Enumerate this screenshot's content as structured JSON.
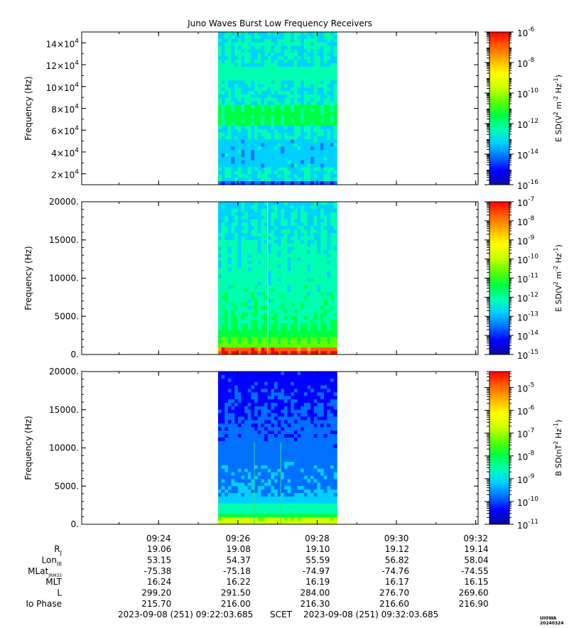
{
  "title": "Juno Waves Burst Low Frequency Receivers",
  "colors": {
    "colormap": [
      "#0a0aa0",
      "#0000ff",
      "#0070ff",
      "#00d0ff",
      "#00ffb0",
      "#00ff40",
      "#60ff00",
      "#d0ff00",
      "#ffff00",
      "#ffb000",
      "#ff6000",
      "#ff0000"
    ]
  },
  "chart_data": [
    {
      "type": "heatmap",
      "ylabel": "Frequency (Hz)",
      "ylim": [
        10000,
        150000
      ],
      "yticks": [
        {
          "value": 20000,
          "mantissa": "2×10",
          "exp": "4"
        },
        {
          "value": 40000,
          "mantissa": "4×10",
          "exp": "4"
        },
        {
          "value": 60000,
          "mantissa": "6×10",
          "exp": "4"
        },
        {
          "value": 80000,
          "mantissa": "8×10",
          "exp": "4"
        },
        {
          "value": 100000,
          "mantissa": "10×10",
          "exp": "4"
        },
        {
          "value": 120000,
          "mantissa": "12×10",
          "exp": "4"
        },
        {
          "value": 140000,
          "mantissa": "14×10",
          "exp": "4"
        }
      ],
      "data_time_range": [
        "09:25:30",
        "09:28:30"
      ],
      "colorbar": {
        "label_main": "E SD(V",
        "label_sup1": "2",
        "label_mid": " m",
        "label_sup2": "-2",
        "label_mid2": " Hz",
        "label_sup3": "-1",
        "label_end": ")",
        "log_range": [
          -16,
          -6
        ],
        "ticks": [
          {
            "value": -6,
            "text": "10",
            "exp": "-6"
          },
          {
            "value": -8,
            "text": "10",
            "exp": "-8"
          },
          {
            "value": -10,
            "text": "10",
            "exp": "-10"
          },
          {
            "value": -12,
            "text": "10",
            "exp": "-12"
          },
          {
            "value": -14,
            "text": "10",
            "exp": "-14"
          },
          {
            "value": -16,
            "text": "10",
            "exp": "-16"
          }
        ]
      }
    },
    {
      "type": "heatmap",
      "ylabel": "Frequency (Hz)",
      "ylim": [
        0,
        20000
      ],
      "yticks": [
        {
          "value": 0,
          "text": "0."
        },
        {
          "value": 5000,
          "text": "5000."
        },
        {
          "value": 10000,
          "text": "10000."
        },
        {
          "value": 15000,
          "text": "15000."
        },
        {
          "value": 20000,
          "text": "20000."
        }
      ],
      "data_time_range": [
        "09:25:30",
        "09:28:30"
      ],
      "colorbar": {
        "label_main": "E SD(V",
        "label_sup1": "2",
        "label_mid": " m",
        "label_sup2": "-2",
        "label_mid2": " Hz",
        "label_sup3": "-1",
        "label_end": ")",
        "log_range": [
          -15,
          -7
        ],
        "ticks": [
          {
            "value": -7,
            "text": "10",
            "exp": "-7"
          },
          {
            "value": -8,
            "text": "10",
            "exp": "-8"
          },
          {
            "value": -9,
            "text": "10",
            "exp": "-9"
          },
          {
            "value": -10,
            "text": "10",
            "exp": "-10"
          },
          {
            "value": -11,
            "text": "10",
            "exp": "-11"
          },
          {
            "value": -12,
            "text": "10",
            "exp": "-12"
          },
          {
            "value": -13,
            "text": "10",
            "exp": "-13"
          },
          {
            "value": -14,
            "text": "10",
            "exp": "-14"
          },
          {
            "value": -15,
            "text": "10",
            "exp": "-15"
          }
        ]
      }
    },
    {
      "type": "heatmap",
      "ylabel": "Frequency (Hz)",
      "ylim": [
        0,
        20000
      ],
      "yticks": [
        {
          "value": 0,
          "text": "0."
        },
        {
          "value": 5000,
          "text": "5000."
        },
        {
          "value": 10000,
          "text": "10000."
        },
        {
          "value": 15000,
          "text": "15000."
        },
        {
          "value": 20000,
          "text": "20000."
        }
      ],
      "data_time_range": [
        "09:25:30",
        "09:28:30"
      ],
      "colorbar": {
        "label_main": "B SD(nT",
        "label_sup1": "2",
        "label_mid": "",
        "label_sup2": "",
        "label_mid2": " Hz",
        "label_sup3": "-1",
        "label_end": ")",
        "log_range": [
          -11,
          -4.3
        ],
        "ticks": [
          {
            "value": -5,
            "text": "10",
            "exp": "-5"
          },
          {
            "value": -6,
            "text": "10",
            "exp": "-6"
          },
          {
            "value": -7,
            "text": "10",
            "exp": "-7"
          },
          {
            "value": -8,
            "text": "10",
            "exp": "-8"
          },
          {
            "value": -9,
            "text": "10",
            "exp": "-9"
          },
          {
            "value": -10,
            "text": "10",
            "exp": "-10"
          },
          {
            "value": -11,
            "text": "10",
            "exp": "-11"
          }
        ]
      }
    }
  ],
  "x_axis": {
    "range_minutes": [
      22.06,
      32.06
    ],
    "ticks": [
      {
        "minute": 24,
        "label": "09:24"
      },
      {
        "minute": 26,
        "label": "09:26"
      },
      {
        "minute": 28,
        "label": "09:28"
      },
      {
        "minute": 30,
        "label": "09:30"
      },
      {
        "minute": 32,
        "label": "09:32"
      }
    ]
  },
  "ephemeris": [
    {
      "name": "R",
      "sub": "J",
      "values": [
        "19.06",
        "19.08",
        "19.10",
        "19.12",
        "19.14"
      ]
    },
    {
      "name": "Lon",
      "sub": "III",
      "values": [
        "53.15",
        "54.37",
        "55.59",
        "56.82",
        "58.04"
      ]
    },
    {
      "name": "MLat",
      "sub": "JRM33",
      "values": [
        "-75.38",
        "-75.18",
        "-74.97",
        "-74.76",
        "-74.55"
      ]
    },
    {
      "name": "MLT",
      "sub": "",
      "values": [
        "16.24",
        "16.22",
        "16.19",
        "16.17",
        "16.15"
      ]
    },
    {
      "name": "L",
      "sub": "",
      "values": [
        "299.20",
        "291.50",
        "284.00",
        "276.70",
        "269.60"
      ]
    },
    {
      "name": "Io Phase",
      "sub": "",
      "values": [
        "215.70",
        "216.00",
        "216.30",
        "216.60",
        "216.90"
      ]
    }
  ],
  "footer": {
    "start": "2023-09-08 (251) 09:22:03.685",
    "scet": "SCET",
    "end": "2023-09-08 (251) 09:32:03.685"
  },
  "watermark": "UIOWA 20240324"
}
